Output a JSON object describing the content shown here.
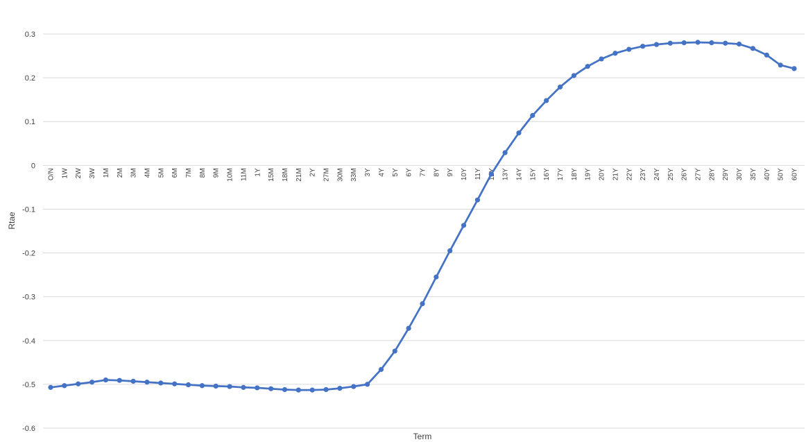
{
  "chart_data": {
    "type": "line",
    "title": "",
    "xlabel": "Term",
    "ylabel": "Rtae",
    "ylim": [
      -0.6,
      0.3
    ],
    "yticks": [
      0.3,
      0.2,
      0.1,
      0,
      -0.1,
      -0.2,
      -0.3,
      -0.4,
      -0.5,
      -0.6
    ],
    "ytick_labels": [
      "0.3",
      "0.2",
      "0.1",
      "0",
      "-0.1",
      "-0.2",
      "-0.3",
      "-0.4",
      "-0.5",
      "-0.6"
    ],
    "grid": true,
    "legend": "none",
    "line_color": "#4472C4",
    "grid_color": "#d9d9d9",
    "categories": [
      "O/N",
      "1W",
      "2W",
      "3W",
      "1M",
      "2M",
      "3M",
      "4M",
      "5M",
      "6M",
      "7M",
      "8M",
      "9M",
      "10M",
      "11M",
      "1Y",
      "15M",
      "18M",
      "21M",
      "2Y",
      "27M",
      "30M",
      "33M",
      "3Y",
      "4Y",
      "5Y",
      "6Y",
      "7Y",
      "8Y",
      "9Y",
      "10Y",
      "11Y",
      "12Y",
      "13Y",
      "14Y",
      "15Y",
      "16Y",
      "17Y",
      "18Y",
      "19Y",
      "20Y",
      "21Y",
      "22Y",
      "23Y",
      "24Y",
      "25Y",
      "26Y",
      "27Y",
      "28Y",
      "29Y",
      "30Y",
      "35Y",
      "40Y",
      "50Y",
      "60Y"
    ],
    "series": [
      {
        "values": [
          -0.507,
          -0.503,
          -0.499,
          -0.495,
          -0.49,
          -0.491,
          -0.493,
          -0.495,
          -0.497,
          -0.499,
          -0.501,
          -0.503,
          -0.504,
          -0.505,
          -0.507,
          -0.508,
          -0.51,
          -0.512,
          -0.513,
          -0.513,
          -0.512,
          -0.509,
          -0.505,
          -0.5,
          -0.466,
          -0.424,
          -0.372,
          -0.316,
          -0.255,
          -0.195,
          -0.137,
          -0.079,
          -0.02,
          0.029,
          0.074,
          0.114,
          0.148,
          0.179,
          0.205,
          0.226,
          0.243,
          0.256,
          0.265,
          0.272,
          0.276,
          0.279,
          0.28,
          0.281,
          0.28,
          0.279,
          0.277,
          0.267,
          0.252,
          0.229,
          0.221
        ]
      }
    ]
  }
}
